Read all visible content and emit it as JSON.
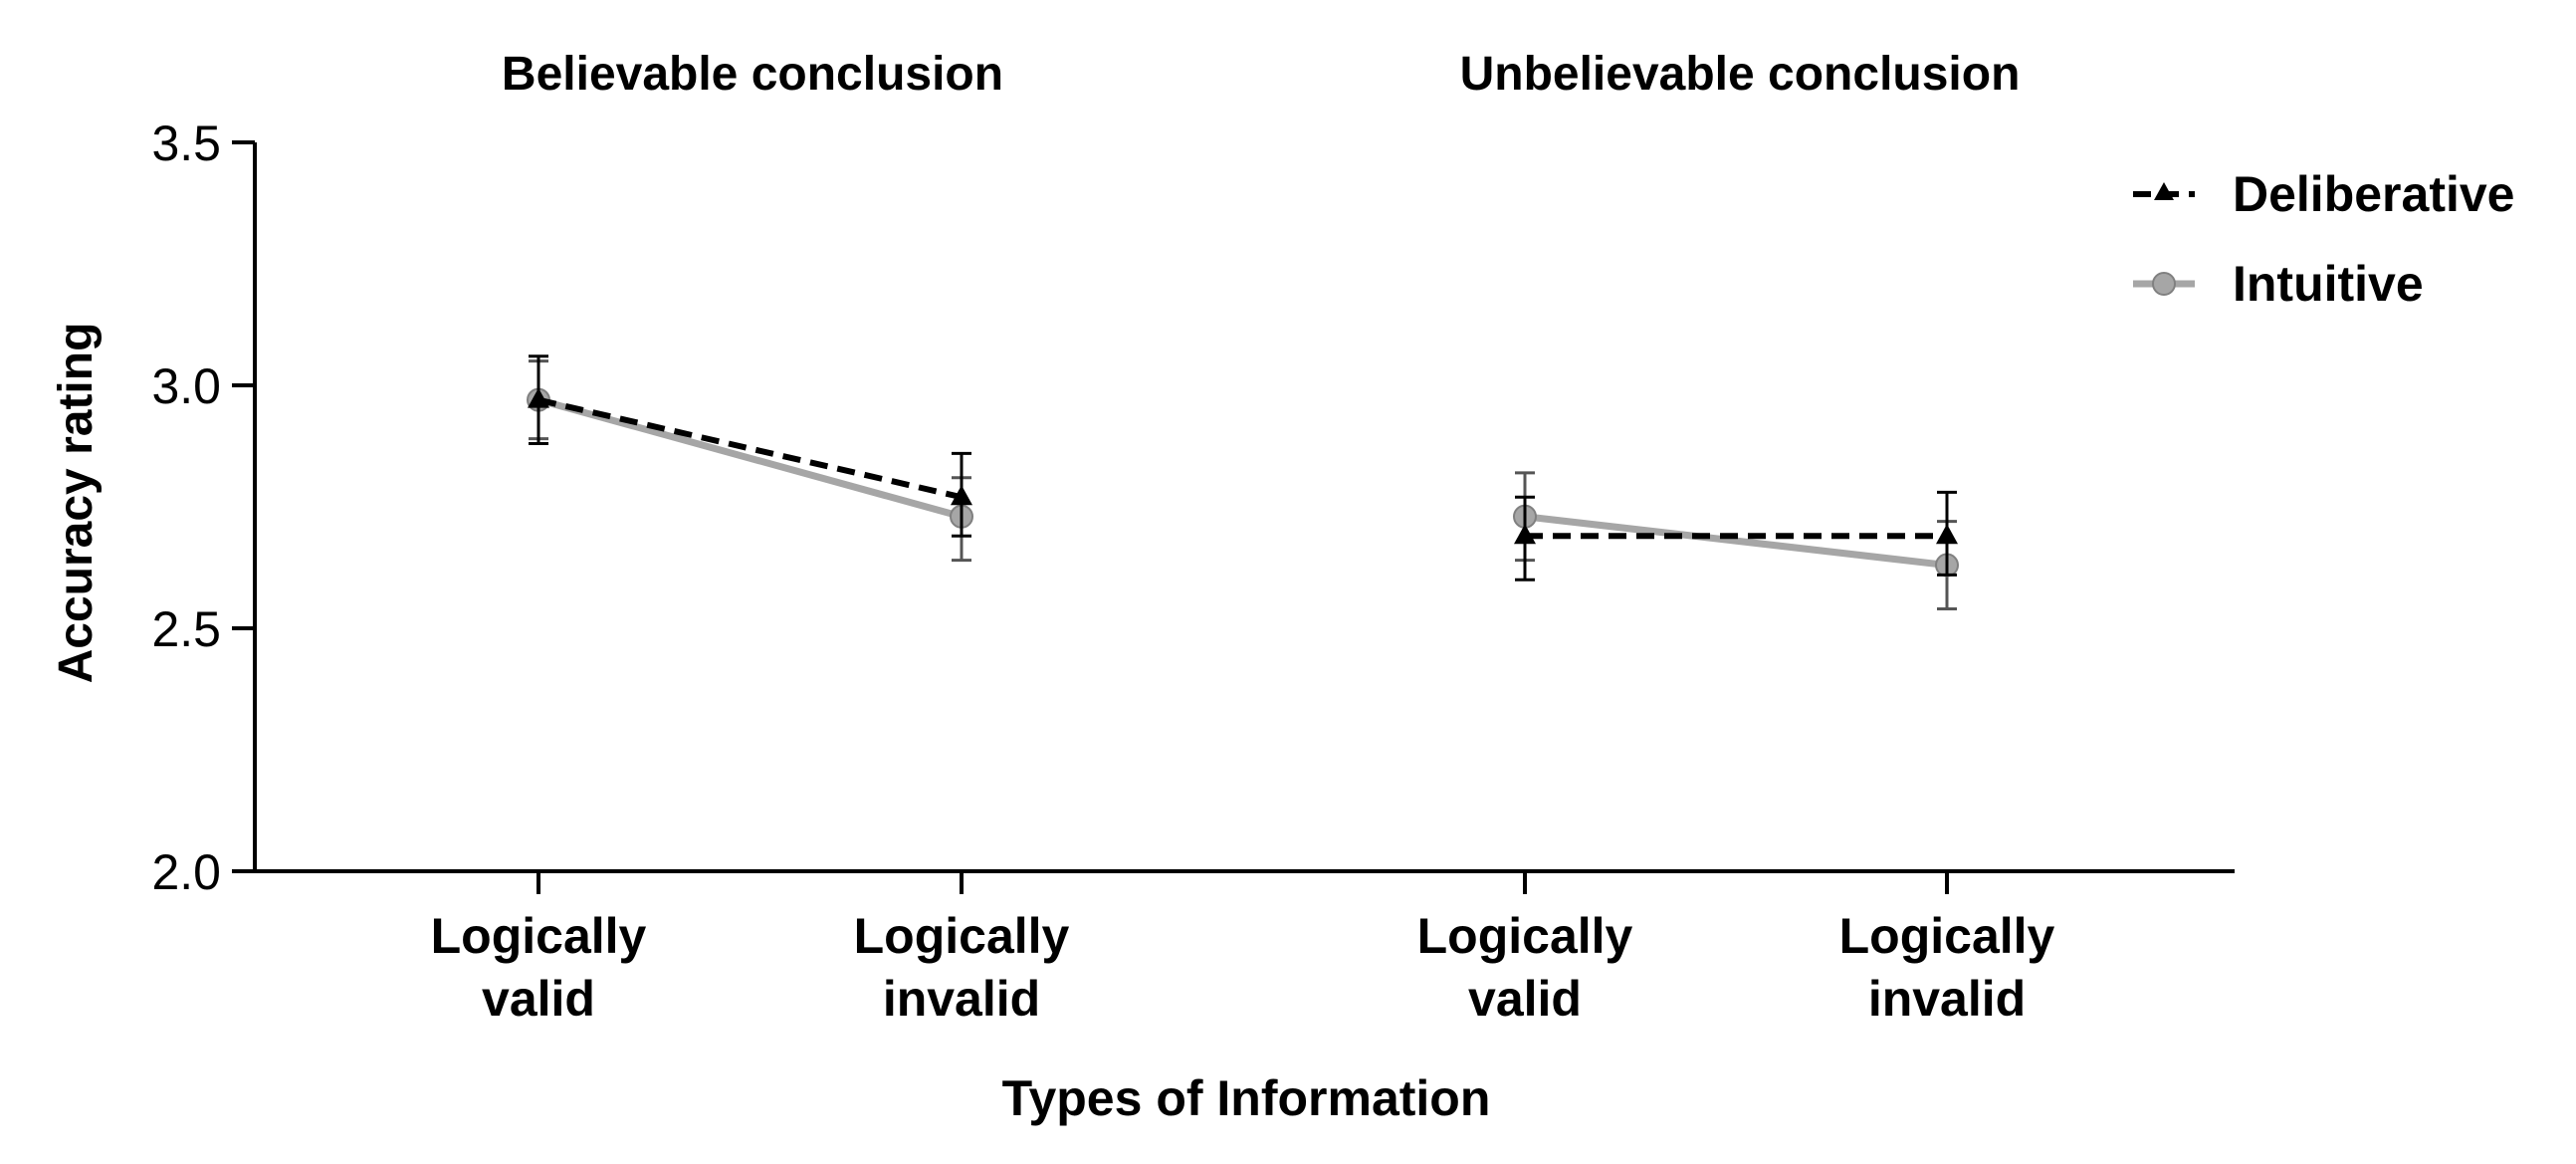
{
  "chart_data": {
    "type": "line",
    "xlabel": "Types of Information",
    "ylabel": "Accuracy rating",
    "ylim": [
      2.0,
      3.5
    ],
    "yticks": [
      "2.0",
      "2.5",
      "3.0",
      "3.5"
    ],
    "panels": [
      "Believable conclusion",
      "Unbelievable conclusion"
    ],
    "categories": [
      "Logically\nvalid",
      "Logically\ninvalid",
      "Logically\nvalid",
      "Logically\ninvalid"
    ],
    "category_lines": [
      [
        "Logically",
        "valid"
      ],
      [
        "Logically",
        "invalid"
      ],
      [
        "Logically",
        "valid"
      ],
      [
        "Logically",
        "invalid"
      ]
    ],
    "legend": "top-right",
    "series": [
      {
        "name": "Deliberative",
        "values": [
          2.97,
          2.77,
          2.69,
          2.69
        ],
        "err_low": [
          2.88,
          2.69,
          2.6,
          2.61
        ],
        "err_high": [
          3.06,
          2.86,
          2.77,
          2.78
        ],
        "color": "#000000",
        "line": "dashed",
        "marker": "triangle"
      },
      {
        "name": "Intuitive",
        "values": [
          2.97,
          2.73,
          2.73,
          2.63
        ],
        "err_low": [
          2.89,
          2.64,
          2.64,
          2.54
        ],
        "err_high": [
          3.05,
          2.81,
          2.82,
          2.72
        ],
        "color": "#a6a6a6",
        "line": "solid",
        "marker": "circle"
      }
    ]
  }
}
